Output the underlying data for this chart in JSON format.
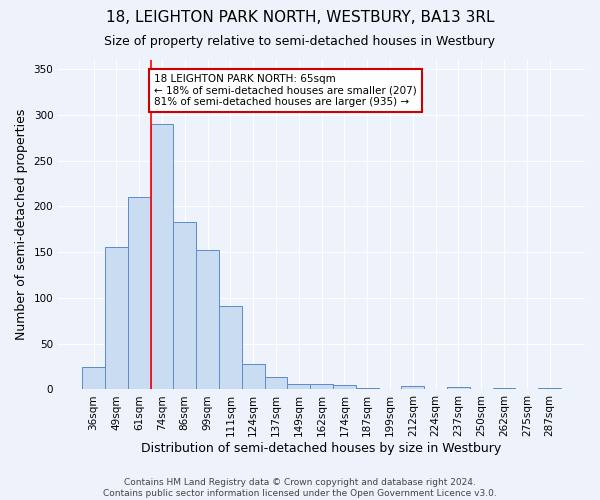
{
  "title": "18, LEIGHTON PARK NORTH, WESTBURY, BA13 3RL",
  "subtitle": "Size of property relative to semi-detached houses in Westbury",
  "xlabel": "Distribution of semi-detached houses by size in Westbury",
  "ylabel": "Number of semi-detached properties",
  "categories": [
    "36sqm",
    "49sqm",
    "61sqm",
    "74sqm",
    "86sqm",
    "99sqm",
    "111sqm",
    "124sqm",
    "137sqm",
    "149sqm",
    "162sqm",
    "174sqm",
    "187sqm",
    "199sqm",
    "212sqm",
    "224sqm",
    "237sqm",
    "250sqm",
    "262sqm",
    "275sqm",
    "287sqm"
  ],
  "values": [
    25,
    156,
    210,
    290,
    183,
    152,
    91,
    28,
    14,
    6,
    6,
    5,
    2,
    0,
    4,
    0,
    3,
    0,
    2,
    0,
    2
  ],
  "bar_color": "#c9dcf2",
  "bar_edge_color": "#5b8cc8",
  "property_label": "18 LEIGHTON PARK NORTH: 65sqm",
  "annotation_line1": "← 18% of semi-detached houses are smaller (207)",
  "annotation_line2": "81% of semi-detached houses are larger (935) →",
  "red_line_x": 2.5,
  "annotation_box_color": "#ffffff",
  "annotation_box_edge_color": "#cc0000",
  "footer_line1": "Contains HM Land Registry data © Crown copyright and database right 2024.",
  "footer_line2": "Contains public sector information licensed under the Open Government Licence v3.0.",
  "ylim": [
    0,
    360
  ],
  "title_fontsize": 11,
  "subtitle_fontsize": 9,
  "axis_label_fontsize": 9,
  "tick_fontsize": 7.5,
  "annotation_fontsize": 7.5,
  "footer_fontsize": 6.5,
  "background_color": "#edf2fb"
}
